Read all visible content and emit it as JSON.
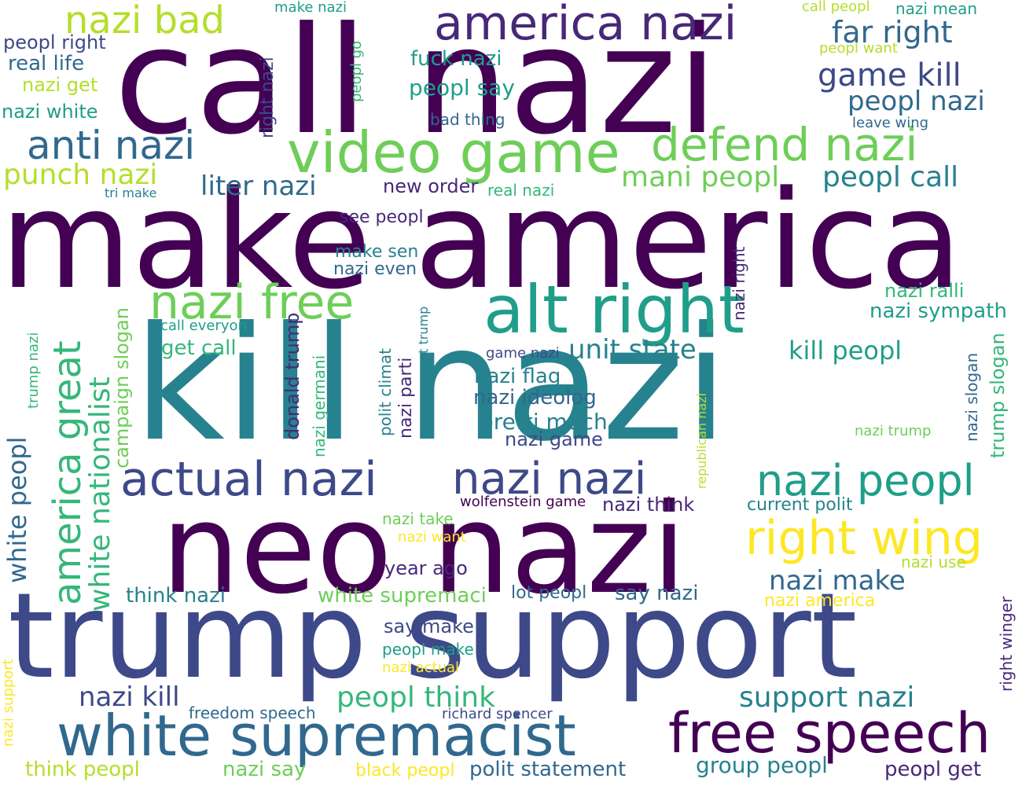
{
  "colors": {
    "background": "#ffffff",
    "palette": [
      "#440154",
      "#482878",
      "#3e4989",
      "#31688e",
      "#26828e",
      "#1f9e89",
      "#35b779",
      "#6ece58",
      "#b5de2b",
      "#fde725"
    ]
  },
  "words": [
    {
      "text": "call nazi",
      "color": "#440154"
    },
    {
      "text": "make america",
      "color": "#440154"
    },
    {
      "text": "kill nazi",
      "color": "#26828e"
    },
    {
      "text": "neo nazi",
      "color": "#440154"
    },
    {
      "text": "trump support",
      "color": "#3e4989"
    },
    {
      "text": "alt right",
      "color": "#1f9e89"
    },
    {
      "text": "video game",
      "color": "#6ece58"
    },
    {
      "text": "white supremacist",
      "color": "#31688e"
    },
    {
      "text": "free speech",
      "color": "#440154"
    },
    {
      "text": "america nazi",
      "color": "#482878"
    },
    {
      "text": "defend nazi",
      "color": "#6ece58"
    },
    {
      "text": "nazi free",
      "color": "#6ece58"
    },
    {
      "text": "actual nazi",
      "color": "#3e4989"
    },
    {
      "text": "nazi nazi",
      "color": "#3e4989"
    },
    {
      "text": "right wing",
      "color": "#fde725"
    },
    {
      "text": "nazi peopl",
      "color": "#1f9e89"
    },
    {
      "text": "nazi bad",
      "color": "#b5de2b"
    },
    {
      "text": "anti nazi",
      "color": "#31688e"
    },
    {
      "text": "america great",
      "color": "#35b779"
    },
    {
      "text": "white nationalist",
      "color": "#35b779"
    },
    {
      "text": "far right",
      "color": "#31688e"
    },
    {
      "text": "game kill",
      "color": "#3e4989"
    },
    {
      "text": "peopl nazi",
      "color": "#31688e"
    },
    {
      "text": "peopl call",
      "color": "#26828e"
    },
    {
      "text": "mani peopl",
      "color": "#6ece58"
    },
    {
      "text": "liter nazi",
      "color": "#31688e"
    },
    {
      "text": "punch nazi",
      "color": "#b5de2b"
    },
    {
      "text": "peopl think",
      "color": "#35b779"
    },
    {
      "text": "support nazi",
      "color": "#26828e"
    },
    {
      "text": "nazi make",
      "color": "#31688e"
    },
    {
      "text": "white peopl",
      "color": "#31688e"
    },
    {
      "text": "unit state",
      "color": "#26828e"
    },
    {
      "text": "kill peopl",
      "color": "#1f9e89"
    },
    {
      "text": "nazi kill",
      "color": "#3e4989"
    },
    {
      "text": "group peopl",
      "color": "#26828e"
    },
    {
      "text": "campaign slogan",
      "color": "#6ece58"
    },
    {
      "text": "donald trump",
      "color": "#482878"
    },
    {
      "text": "pretti much",
      "color": "#26828e"
    },
    {
      "text": "nazi flag",
      "color": "#26828e"
    },
    {
      "text": "nazi ideolog",
      "color": "#31688e"
    },
    {
      "text": "trump slogan",
      "color": "#35b779"
    },
    {
      "text": "fuck nazi",
      "color": "#1f9e89"
    },
    {
      "text": "peopl say",
      "color": "#1f9e89"
    },
    {
      "text": "real life",
      "color": "#31688e"
    },
    {
      "text": "nazi white",
      "color": "#1f9e89"
    },
    {
      "text": "nazi get",
      "color": "#b5de2b"
    },
    {
      "text": "peopl right",
      "color": "#3e4989"
    },
    {
      "text": "right nazi",
      "color": "#3e4989"
    },
    {
      "text": "nazi ralli",
      "color": "#35b779"
    },
    {
      "text": "nazi sympath",
      "color": "#1f9e89"
    },
    {
      "text": "think nazi",
      "color": "#26828e"
    },
    {
      "text": "white supremaci",
      "color": "#6ece58"
    },
    {
      "text": "say nazi",
      "color": "#31688e"
    },
    {
      "text": "nazi america",
      "color": "#fde725"
    },
    {
      "text": "think peopl",
      "color": "#b5de2b"
    },
    {
      "text": "nazi say",
      "color": "#6ece58"
    },
    {
      "text": "polit statement",
      "color": "#31688e"
    },
    {
      "text": "peopl get",
      "color": "#482878"
    },
    {
      "text": "nazi game",
      "color": "#3e4989"
    },
    {
      "text": "nazi parti",
      "color": "#482878"
    },
    {
      "text": "get call",
      "color": "#35b779"
    },
    {
      "text": "nazi think",
      "color": "#482878"
    },
    {
      "text": "new order",
      "color": "#482878"
    },
    {
      "text": "year ago",
      "color": "#482878"
    },
    {
      "text": "say make",
      "color": "#3e4989"
    },
    {
      "text": "lot peopl",
      "color": "#31688e"
    },
    {
      "text": "bad thing",
      "color": "#31688e"
    },
    {
      "text": "nazi even",
      "color": "#31688e"
    },
    {
      "text": "make sen",
      "color": "#26828e"
    },
    {
      "text": "see peopl",
      "color": "#482878"
    },
    {
      "text": "real nazi",
      "color": "#35b779"
    },
    {
      "text": "make nazi",
      "color": "#1f9e89"
    },
    {
      "text": "call peopl",
      "color": "#b5de2b"
    },
    {
      "text": "nazi mean",
      "color": "#1f9e89"
    },
    {
      "text": "peopl want",
      "color": "#b5de2b"
    },
    {
      "text": "leave wing",
      "color": "#31688e"
    },
    {
      "text": "peopl go",
      "color": "#35b779"
    },
    {
      "text": "tri make",
      "color": "#26828e"
    },
    {
      "text": "call everyon",
      "color": "#1f9e89"
    },
    {
      "text": "trump nazi",
      "color": "#35b779"
    },
    {
      "text": "game nazi",
      "color": "#3e4989"
    },
    {
      "text": "nazi right",
      "color": "#482878"
    },
    {
      "text": "polit climat",
      "color": "#26828e"
    },
    {
      "text": "support trump",
      "color": "#26828e"
    },
    {
      "text": "nazi germani",
      "color": "#35b779"
    },
    {
      "text": "republican nazi",
      "color": "#b5de2b"
    },
    {
      "text": "nazi slogan",
      "color": "#31688e"
    },
    {
      "text": "nazi trump",
      "color": "#6ece58"
    },
    {
      "text": "current polit",
      "color": "#26828e"
    },
    {
      "text": "wolfenstein game",
      "color": "#440154"
    },
    {
      "text": "nazi take",
      "color": "#6ece58"
    },
    {
      "text": "nazi want",
      "color": "#fde725"
    },
    {
      "text": "nazi use",
      "color": "#b5de2b"
    },
    {
      "text": "right winger",
      "color": "#482878"
    },
    {
      "text": "peopl make",
      "color": "#1f9e89"
    },
    {
      "text": "nazi actual",
      "color": "#fde725"
    },
    {
      "text": "nazi support",
      "color": "#fde725"
    },
    {
      "text": "freedom speech",
      "color": "#31688e"
    },
    {
      "text": "richard spencer",
      "color": "#3e4989"
    },
    {
      "text": "black peopl",
      "color": "#fde725"
    }
  ]
}
